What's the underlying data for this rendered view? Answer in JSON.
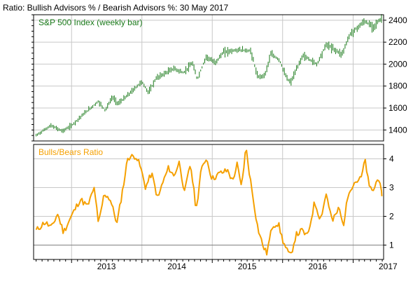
{
  "title": "Ratio: Bullish Advisors % / Bearish Advisors %: 30 May 2017",
  "colors": {
    "price": "#1a7a1a",
    "ratio": "#f5a000",
    "grid": "#c8c8c8",
    "frame": "#000000",
    "baseline": "#808080"
  },
  "chart_data": [
    {
      "type": "ohlc",
      "name": "S&P 500 Index (weekly bar)",
      "legend_label": "S&P 500 Index (weekly bar)",
      "ylim": [
        1300,
        2450
      ],
      "yticks": [
        1400,
        1600,
        1800,
        2000,
        2200,
        2400
      ],
      "grid": true,
      "points": [
        [
          "2012-07-01",
          1350
        ],
        [
          "2012-09-15",
          1440
        ],
        [
          "2012-11-15",
          1390
        ],
        [
          "2013-01-01",
          1440
        ],
        [
          "2013-03-01",
          1540
        ],
        [
          "2013-05-20",
          1660
        ],
        [
          "2013-06-25",
          1580
        ],
        [
          "2013-08-01",
          1700
        ],
        [
          "2013-08-30",
          1640
        ],
        [
          "2013-10-10",
          1700
        ],
        [
          "2013-12-31",
          1840
        ],
        [
          "2014-02-05",
          1740
        ],
        [
          "2014-03-15",
          1870
        ],
        [
          "2014-06-15",
          1960
        ],
        [
          "2014-08-05",
          1920
        ],
        [
          "2014-09-20",
          2010
        ],
        [
          "2014-10-15",
          1860
        ],
        [
          "2014-12-01",
          2070
        ],
        [
          "2015-01-15",
          2010
        ],
        [
          "2015-03-01",
          2110
        ],
        [
          "2015-05-20",
          2130
        ],
        [
          "2015-07-20",
          2120
        ],
        [
          "2015-08-25",
          1880
        ],
        [
          "2015-10-01",
          1900
        ],
        [
          "2015-11-01",
          2090
        ],
        [
          "2015-12-15",
          2040
        ],
        [
          "2016-01-20",
          1880
        ],
        [
          "2016-02-11",
          1830
        ],
        [
          "2016-04-15",
          2080
        ],
        [
          "2016-06-27",
          2000
        ],
        [
          "2016-08-15",
          2180
        ],
        [
          "2016-11-04",
          2090
        ],
        [
          "2016-12-15",
          2270
        ],
        [
          "2017-03-01",
          2390
        ],
        [
          "2017-04-15",
          2340
        ],
        [
          "2017-05-30",
          2420
        ]
      ]
    },
    {
      "type": "line",
      "name": "Bulls/Bears Ratio",
      "legend_label": "Bulls/Bears Ratio",
      "ylim": [
        0.5,
        4.5
      ],
      "yticks": [
        1,
        2,
        3,
        4
      ],
      "baseline": 1,
      "grid": true,
      "x_tick_labels": [
        "2013",
        "2014",
        "2015",
        "2016",
        "2017"
      ],
      "points": [
        [
          "2012-07-01",
          1.5
        ],
        [
          "2012-08-15",
          1.8
        ],
        [
          "2012-09-20",
          1.6
        ],
        [
          "2012-10-20",
          2.1
        ],
        [
          "2012-11-20",
          1.45
        ],
        [
          "2012-12-31",
          2.0
        ],
        [
          "2013-02-15",
          2.6
        ],
        [
          "2013-03-25",
          2.35
        ],
        [
          "2013-04-30",
          3.0
        ],
        [
          "2013-05-20",
          1.7
        ],
        [
          "2013-06-20",
          2.8
        ],
        [
          "2013-07-20",
          2.6
        ],
        [
          "2013-08-25",
          1.75
        ],
        [
          "2013-09-25",
          3.0
        ],
        [
          "2013-10-20",
          4.05
        ],
        [
          "2013-12-01",
          4.1
        ],
        [
          "2013-12-25",
          3.7
        ],
        [
          "2014-01-20",
          3.0
        ],
        [
          "2014-02-20",
          3.5
        ],
        [
          "2014-03-25",
          2.6
        ],
        [
          "2014-04-15",
          3.1
        ],
        [
          "2014-05-20",
          3.7
        ],
        [
          "2014-06-15",
          3.4
        ],
        [
          "2014-07-15",
          3.9
        ],
        [
          "2014-08-10",
          2.8
        ],
        [
          "2014-09-10",
          3.85
        ],
        [
          "2014-10-10",
          2.2
        ],
        [
          "2014-11-01",
          3.5
        ],
        [
          "2014-12-01",
          4.05
        ],
        [
          "2014-12-31",
          3.3
        ],
        [
          "2015-02-10",
          3.5
        ],
        [
          "2015-03-25",
          3.6
        ],
        [
          "2015-04-15",
          3.2
        ],
        [
          "2015-05-10",
          3.8
        ],
        [
          "2015-06-01",
          3.0
        ],
        [
          "2015-06-25",
          4.4
        ],
        [
          "2015-07-15",
          3.4
        ],
        [
          "2015-08-25",
          1.6
        ],
        [
          "2015-09-20",
          1.0
        ],
        [
          "2015-10-10",
          0.7
        ],
        [
          "2015-11-10",
          1.7
        ],
        [
          "2015-12-10",
          1.75
        ],
        [
          "2015-12-31",
          1.2
        ],
        [
          "2016-01-20",
          0.85
        ],
        [
          "2016-02-11",
          0.6
        ],
        [
          "2016-03-10",
          1.35
        ],
        [
          "2016-04-10",
          1.5
        ],
        [
          "2016-05-10",
          1.3
        ],
        [
          "2016-05-25",
          1.8
        ],
        [
          "2016-06-15",
          2.5
        ],
        [
          "2016-07-15",
          1.9
        ],
        [
          "2016-08-15",
          2.8
        ],
        [
          "2016-09-15",
          1.8
        ],
        [
          "2016-10-20",
          2.3
        ],
        [
          "2016-11-10",
          1.65
        ],
        [
          "2016-12-10",
          2.9
        ],
        [
          "2017-01-10",
          3.2
        ],
        [
          "2017-02-10",
          3.3
        ],
        [
          "2017-03-05",
          3.95
        ],
        [
          "2017-03-25",
          3.0
        ],
        [
          "2017-04-20",
          2.9
        ],
        [
          "2017-05-10",
          3.45
        ],
        [
          "2017-05-30",
          2.7
        ]
      ]
    }
  ]
}
